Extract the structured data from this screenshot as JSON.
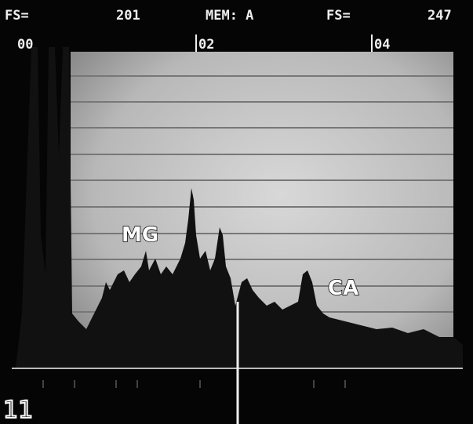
{
  "header": {
    "fs_left_label": "FS=",
    "fs_left_value": "201",
    "memory": "MEM: A",
    "fs_right_label": "FS=",
    "fs_right_value": "247"
  },
  "markers": [
    "00",
    "02",
    "04"
  ],
  "annotations": {
    "magnesium": "MG",
    "calcium": "CA"
  },
  "figure_number": "11"
}
